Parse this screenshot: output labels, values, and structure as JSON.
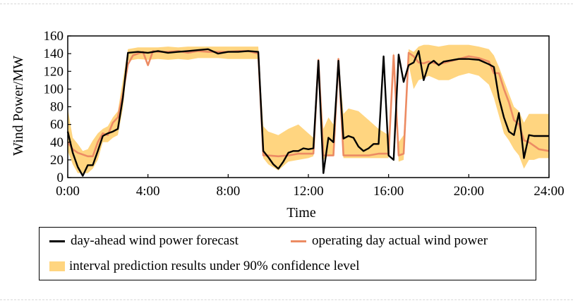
{
  "chart_data": {
    "type": "line",
    "xlabel": "Time",
    "ylabel": "Wind Power/MW",
    "xlim": [
      0,
      24
    ],
    "ylim": [
      0,
      160
    ],
    "x_ticks": [
      0,
      4,
      8,
      12,
      16,
      20,
      24
    ],
    "x_tick_labels": [
      "0:00",
      "4:00",
      "8:00",
      "12:00",
      "16:00",
      "20:00",
      "24:00"
    ],
    "y_ticks": [
      0,
      20,
      40,
      60,
      80,
      100,
      120,
      140,
      160
    ],
    "y_tick_labels": [
      "0",
      "20",
      "40",
      "60",
      "80",
      "100",
      "120",
      "140",
      "160"
    ],
    "legend_position": "bottom",
    "series": [
      {
        "name": "day-ahead wind power forecast",
        "color": "#000000",
        "x": [
          0,
          0.25,
          0.5,
          0.75,
          1,
          1.25,
          1.5,
          1.75,
          2,
          2.25,
          2.5,
          2.75,
          3,
          3.5,
          4,
          4.5,
          5,
          5.5,
          6,
          6.5,
          7,
          7.5,
          8,
          8.5,
          9,
          9.5,
          9.75,
          10,
          10.25,
          10.5,
          10.75,
          11,
          11.25,
          11.5,
          11.75,
          12,
          12.25,
          12.5,
          12.75,
          13,
          13.25,
          13.5,
          13.75,
          14,
          14.25,
          14.5,
          14.75,
          15,
          15.25,
          15.5,
          15.75,
          16,
          16.25,
          16.5,
          16.75,
          17,
          17.25,
          17.5,
          17.75,
          18,
          18.25,
          18.5,
          18.75,
          19,
          19.5,
          20,
          20.5,
          21,
          21.25,
          21.5,
          21.75,
          22,
          22.25,
          22.5,
          22.75,
          23,
          23.25,
          23.5,
          24
        ],
        "values": [
          52,
          28,
          12,
          2,
          14,
          14,
          30,
          47,
          50,
          52,
          55,
          90,
          141,
          142,
          141,
          143,
          141,
          142,
          143,
          144,
          145,
          140,
          142,
          142,
          143,
          142,
          30,
          23,
          15,
          10,
          18,
          28,
          30,
          30,
          33,
          32,
          33,
          132,
          5,
          45,
          40,
          132,
          44,
          47,
          45,
          35,
          30,
          33,
          38,
          38,
          137,
          25,
          20,
          139,
          108,
          127,
          130,
          143,
          110,
          128,
          132,
          127,
          131,
          132,
          134,
          134,
          133,
          128,
          125,
          90,
          68,
          52,
          48,
          73,
          22,
          48,
          47,
          47,
          47
        ]
      },
      {
        "name": "operating day actual wind power",
        "color": "#ec8b63",
        "x": [
          0,
          0.25,
          0.5,
          0.75,
          1,
          1.25,
          1.5,
          1.75,
          2,
          2.25,
          2.5,
          2.75,
          3,
          3.25,
          3.5,
          3.75,
          4,
          4.25,
          4.5,
          5,
          5.5,
          6,
          6.5,
          7,
          7.5,
          8,
          8.5,
          9,
          9.5,
          9.75,
          10,
          10.5,
          11,
          11.5,
          12,
          12.25,
          12.5,
          12.75,
          13,
          13.25,
          13.5,
          13.75,
          14,
          14.5,
          15,
          15.5,
          16,
          16.25,
          16.5,
          16.75,
          17,
          17.25,
          17.5,
          17.75,
          18,
          18.5,
          19,
          19.5,
          20,
          20.5,
          21,
          21.25,
          21.5,
          21.75,
          22,
          22.25,
          22.5,
          22.75,
          23,
          23.25,
          23.5,
          24
        ],
        "values": [
          40,
          32,
          28,
          26,
          24,
          24,
          40,
          50,
          48,
          62,
          68,
          95,
          128,
          138,
          140,
          142,
          127,
          143,
          142,
          142,
          143,
          141,
          143,
          142,
          142,
          142,
          143,
          143,
          140,
          25,
          25,
          24,
          25,
          27,
          27,
          27,
          133,
          25,
          25,
          25,
          134,
          25,
          25,
          25,
          25,
          27,
          27,
          138,
          25,
          27,
          141,
          137,
          130,
          129,
          131,
          128,
          131,
          134,
          137,
          135,
          131,
          118,
          118,
          100,
          85,
          65,
          60,
          42,
          40,
          36,
          32,
          30
        ]
      },
      {
        "name": "interval prediction results under 90% confidence level",
        "color": "#ffd580",
        "x": [
          0,
          0.25,
          0.5,
          0.75,
          1,
          1.25,
          1.5,
          1.75,
          2,
          2.25,
          2.5,
          2.75,
          3,
          3.5,
          4,
          4.5,
          5,
          5.5,
          6,
          6.5,
          7,
          7.5,
          8,
          8.5,
          9,
          9.5,
          9.75,
          10,
          10.5,
          11,
          11.5,
          12,
          12.25,
          12.5,
          12.75,
          13,
          13.25,
          13.5,
          13.75,
          14,
          14.5,
          15,
          15.5,
          16,
          16.25,
          16.5,
          16.75,
          17,
          17.25,
          17.5,
          17.75,
          18,
          18.5,
          19,
          19.5,
          20,
          20.5,
          21,
          21.25,
          21.5,
          21.75,
          22,
          22.25,
          22.5,
          22.75,
          23,
          23.25,
          23.5,
          24
        ],
        "upper": [
          78,
          45,
          38,
          30,
          32,
          42,
          50,
          55,
          58,
          68,
          75,
          110,
          145,
          147,
          147,
          147,
          148,
          147,
          148,
          148,
          148,
          148,
          148,
          148,
          148,
          148,
          58,
          52,
          48,
          55,
          60,
          50,
          45,
          136,
          55,
          68,
          60,
          136,
          72,
          78,
          75,
          65,
          55,
          48,
          142,
          40,
          48,
          145,
          142,
          148,
          150,
          150,
          148,
          150,
          150,
          150,
          148,
          145,
          138,
          125,
          110,
          95,
          80,
          75,
          62,
          72,
          72,
          72,
          72
        ],
        "lower": [
          30,
          15,
          5,
          5,
          5,
          10,
          20,
          40,
          40,
          45,
          48,
          78,
          132,
          134,
          133,
          134,
          133,
          134,
          133,
          135,
          135,
          135,
          134,
          134,
          134,
          134,
          22,
          15,
          8,
          18,
          20,
          22,
          24,
          126,
          20,
          25,
          25,
          126,
          22,
          22,
          22,
          22,
          22,
          22,
          130,
          18,
          20,
          128,
          100,
          110,
          112,
          115,
          110,
          110,
          115,
          118,
          115,
          105,
          90,
          70,
          50,
          42,
          32,
          25,
          10,
          20,
          20,
          22,
          22
        ]
      }
    ]
  },
  "legend": {
    "forecast_label": "day-ahead wind power forecast",
    "actual_label": "operating day actual wind power",
    "interval_label": "interval prediction results under 90% confidence level"
  }
}
